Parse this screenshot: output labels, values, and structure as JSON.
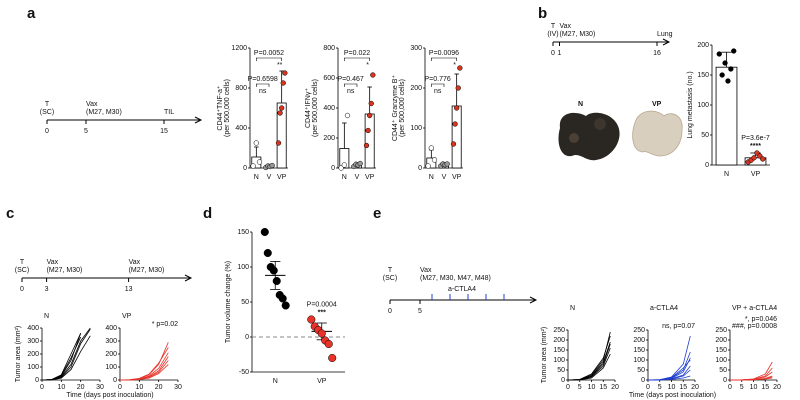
{
  "panels": [
    "a",
    "b",
    "c",
    "d",
    "e"
  ],
  "images": [
    "N",
    "VP"
  ],
  "timelines": [
    {
      "ticks": [
        0,
        5,
        15
      ],
      "labels": [
        [
          "T",
          "(SC)"
        ],
        [
          "Vax",
          "(M27, M30)"
        ],
        [
          "TIL"
        ]
      ]
    },
    {
      "ticks": [
        0,
        1,
        16
      ],
      "labels": [
        [
          "T",
          "(IV)"
        ],
        [
          "Vax",
          "(M27, M30)"
        ],
        [
          "Lung"
        ]
      ]
    },
    {
      "ticks": [
        0,
        3,
        13
      ],
      "labels": [
        [
          "T",
          "(SC)"
        ],
        [
          "Vax",
          "(M27, M30)"
        ],
        [
          "Vax",
          "(M27, M30)"
        ]
      ]
    },
    {
      "ticks": [
        0,
        5
      ],
      "labels": [
        [
          "T",
          "(SC)"
        ],
        [
          "Vax",
          "(M27, M30, M47, M48)"
        ]
      ],
      "drug": "a-CTLA4",
      "drug_color": "#1f3fd0"
    }
  ],
  "chart_data": [
    {
      "type": "bar",
      "ylabel": [
        "CD44⁺TNF-a⁺",
        "(per 500,000 cells)"
      ],
      "categories": [
        "N",
        "V",
        "VP"
      ],
      "values": [
        110,
        15,
        650
      ],
      "errors": [
        100,
        10,
        320
      ],
      "points": [
        [
          20,
          250,
          60
        ],
        [
          5,
          20,
          15,
          25
        ],
        [
          250,
          550,
          600,
          850,
          950
        ]
      ],
      "colors": [
        "#ffffff",
        "#999999",
        "#d9341f"
      ],
      "ylim": [
        0,
        1200
      ],
      "yticks": [
        0,
        400,
        800,
        1200
      ],
      "annotations": [
        [
          "P=0.6598",
          "ns"
        ],
        [
          "P=0.0052",
          "**"
        ]
      ]
    },
    {
      "type": "bar",
      "ylabel": [
        "CD44⁺IFNγ⁺",
        "(per 500,000 cells)"
      ],
      "categories": [
        "N",
        "V",
        "VP"
      ],
      "values": [
        130,
        20,
        360
      ],
      "errors": [
        170,
        10,
        180
      ],
      "points": [
        [
          0,
          20,
          350
        ],
        [
          10,
          25,
          20,
          30
        ],
        [
          150,
          250,
          350,
          430,
          620
        ]
      ],
      "colors": [
        "#ffffff",
        "#999999",
        "#d9341f"
      ],
      "ylim": [
        0,
        800
      ],
      "yticks": [
        0,
        200,
        400,
        600,
        800
      ],
      "annotations": [
        [
          "P=0.467",
          "ns"
        ],
        [
          "P=0.022",
          "*"
        ]
      ]
    },
    {
      "type": "bar",
      "ylabel": [
        "CD44⁺ Granzyme B⁺",
        "(per 500,000 cells)"
      ],
      "categories": [
        "N",
        "V",
        "VP"
      ],
      "values": [
        25,
        8,
        155
      ],
      "errors": [
        20,
        5,
        80
      ],
      "points": [
        [
          5,
          50,
          20
        ],
        [
          5,
          10,
          8,
          10
        ],
        [
          60,
          110,
          150,
          200,
          250
        ]
      ],
      "colors": [
        "#ffffff",
        "#999999",
        "#d9341f"
      ],
      "ylim": [
        0,
        300
      ],
      "yticks": [
        0,
        100,
        200,
        300
      ],
      "annotations": [
        [
          "P=0.776",
          "ns"
        ],
        [
          "P=0.0096",
          "*"
        ]
      ]
    },
    {
      "type": "bar",
      "ylabel": "Lung metastasis (no.)",
      "categories": [
        "N",
        "VP"
      ],
      "values": [
        163,
        12
      ],
      "errors": [
        25,
        8
      ],
      "points": [
        [
          185,
          150,
          170,
          140,
          160,
          190
        ],
        [
          5,
          8,
          12,
          20,
          15,
          10
        ]
      ],
      "colors": [
        "#000000",
        "#d9341f"
      ],
      "ylim": [
        0,
        200
      ],
      "yticks": [
        0,
        50,
        100,
        150,
        200
      ],
      "annotations": [
        [
          "P=3.6e-7",
          "****"
        ]
      ]
    },
    {
      "type": "dots",
      "ylabel": "Tumor volume change (%)",
      "categories": [
        "N",
        "VP"
      ],
      "values": [
        88,
        8
      ],
      "errors": [
        20,
        12
      ],
      "points": [
        [
          150,
          120,
          100,
          95,
          80,
          60,
          55,
          45
        ],
        [
          25,
          15,
          10,
          5,
          -5,
          -10,
          -30
        ]
      ],
      "colors": [
        "#000000",
        "#e8332a"
      ],
      "ylim": [
        -50,
        150
      ],
      "yticks": [
        -50,
        0,
        50,
        100,
        150
      ],
      "zero_line": true,
      "annotations": [
        [
          "P=0.0004",
          "***"
        ]
      ]
    },
    {
      "type": "line",
      "title": "N",
      "ylabel": "Tumor area (mm²)",
      "xlabel": "Time (days post inoculation)",
      "x": [
        0,
        5,
        10,
        15,
        20,
        25
      ],
      "xlim": [
        0,
        30
      ],
      "xticks": [
        0,
        10,
        20,
        30
      ],
      "ylim": [
        0,
        400
      ],
      "yticks": [
        0,
        100,
        200,
        300,
        400
      ],
      "series": [
        {
          "color": "#000000",
          "values": [
            0,
            3,
            30,
            150,
            360,
            null
          ]
        },
        {
          "color": "#000000",
          "values": [
            0,
            2,
            20,
            100,
            280,
            390
          ]
        },
        {
          "color": "#000000",
          "values": [
            0,
            4,
            40,
            200,
            360,
            null
          ]
        },
        {
          "color": "#000000",
          "values": [
            0,
            1,
            15,
            80,
            220,
            340
          ]
        },
        {
          "color": "#000000",
          "values": [
            0,
            2,
            25,
            120,
            300,
            400
          ]
        },
        {
          "color": "#000000",
          "values": [
            0,
            3,
            35,
            170,
            330,
            null
          ]
        }
      ]
    },
    {
      "type": "line",
      "title": "VP",
      "notes": [
        "* p=0.02"
      ],
      "x": [
        0,
        5,
        10,
        15,
        20,
        25
      ],
      "xlim": [
        0,
        30
      ],
      "xticks": [
        0,
        10,
        20,
        30
      ],
      "ylim": [
        0,
        400
      ],
      "yticks": [
        0,
        100,
        200,
        300,
        400
      ],
      "series": [
        {
          "color": "#e8332a",
          "values": [
            0,
            1,
            10,
            40,
            120,
            290
          ]
        },
        {
          "color": "#e8332a",
          "values": [
            0,
            1,
            8,
            30,
            90,
            210
          ]
        },
        {
          "color": "#e8332a",
          "values": [
            0,
            0,
            5,
            25,
            70,
            180
          ]
        },
        {
          "color": "#e8332a",
          "values": [
            0,
            1,
            6,
            20,
            60,
            150
          ]
        },
        {
          "color": "#e8332a",
          "values": [
            0,
            2,
            12,
            45,
            130,
            250
          ]
        },
        {
          "color": "#e8332a",
          "values": [
            0,
            0,
            4,
            15,
            50,
            120
          ]
        }
      ]
    },
    {
      "type": "line",
      "title": "N",
      "ylabel": "Tumor area (mm²)",
      "xlabel": "Time (days post inoculation)",
      "x": [
        0,
        5,
        10,
        15,
        18
      ],
      "xlim": [
        0,
        20
      ],
      "xticks": [
        0,
        5,
        10,
        15,
        20
      ],
      "ylim": [
        0,
        250
      ],
      "yticks": [
        0,
        50,
        100,
        150,
        200,
        250
      ],
      "series": [
        {
          "color": "#000000",
          "values": [
            0,
            2,
            20,
            90,
            190
          ]
        },
        {
          "color": "#000000",
          "values": [
            0,
            3,
            30,
            110,
            220
          ]
        },
        {
          "color": "#000000",
          "values": [
            0,
            1,
            15,
            70,
            160
          ]
        },
        {
          "color": "#000000",
          "values": [
            0,
            2,
            25,
            100,
            240
          ]
        },
        {
          "color": "#000000",
          "values": [
            0,
            1,
            10,
            60,
            130
          ]
        },
        {
          "color": "#000000",
          "values": [
            0,
            2,
            18,
            80,
            180
          ]
        }
      ]
    },
    {
      "type": "line",
      "title": "a-CTLA4",
      "notes": [
        "ns, p=0.07"
      ],
      "x": [
        0,
        5,
        10,
        15,
        18
      ],
      "xlim": [
        0,
        20
      ],
      "xticks": [
        0,
        5,
        10,
        15,
        20
      ],
      "ylim": [
        0,
        250
      ],
      "yticks": [
        0,
        50,
        100,
        150,
        200,
        250
      ],
      "series": [
        {
          "color": "#1f3fd0",
          "values": [
            0,
            2,
            15,
            80,
            220
          ]
        },
        {
          "color": "#1f3fd0",
          "values": [
            0,
            1,
            10,
            50,
            140
          ]
        },
        {
          "color": "#1f3fd0",
          "values": [
            0,
            1,
            8,
            40,
            110
          ]
        },
        {
          "color": "#1f3fd0",
          "values": [
            0,
            2,
            12,
            60,
            100
          ]
        },
        {
          "color": "#1f3fd0",
          "values": [
            0,
            0,
            5,
            20,
            50
          ]
        },
        {
          "color": "#1f3fd0",
          "values": [
            0,
            1,
            6,
            25,
            70
          ]
        },
        {
          "color": "#1f3fd0",
          "values": [
            0,
            0,
            3,
            10,
            20
          ]
        }
      ]
    },
    {
      "type": "line",
      "title": "VP + a-CTLA4",
      "notes": [
        "*, p=0.046",
        "###, p=0.0008"
      ],
      "x": [
        0,
        5,
        10,
        15,
        18
      ],
      "xlim": [
        0,
        20
      ],
      "xticks": [
        0,
        5,
        10,
        15,
        20
      ],
      "ylim": [
        0,
        250
      ],
      "yticks": [
        0,
        50,
        100,
        150,
        200,
        250
      ],
      "series": [
        {
          "color": "#e8332a",
          "values": [
            0,
            1,
            5,
            30,
            90
          ]
        },
        {
          "color": "#e8332a",
          "values": [
            0,
            1,
            4,
            20,
            60
          ]
        },
        {
          "color": "#e8332a",
          "values": [
            0,
            0,
            3,
            15,
            40
          ]
        },
        {
          "color": "#e8332a",
          "values": [
            0,
            0,
            2,
            8,
            20
          ]
        },
        {
          "color": "#e8332a",
          "values": [
            0,
            0,
            1,
            5,
            10
          ]
        },
        {
          "color": "#e8332a",
          "values": [
            0,
            0,
            2,
            6,
            15
          ]
        }
      ]
    }
  ]
}
